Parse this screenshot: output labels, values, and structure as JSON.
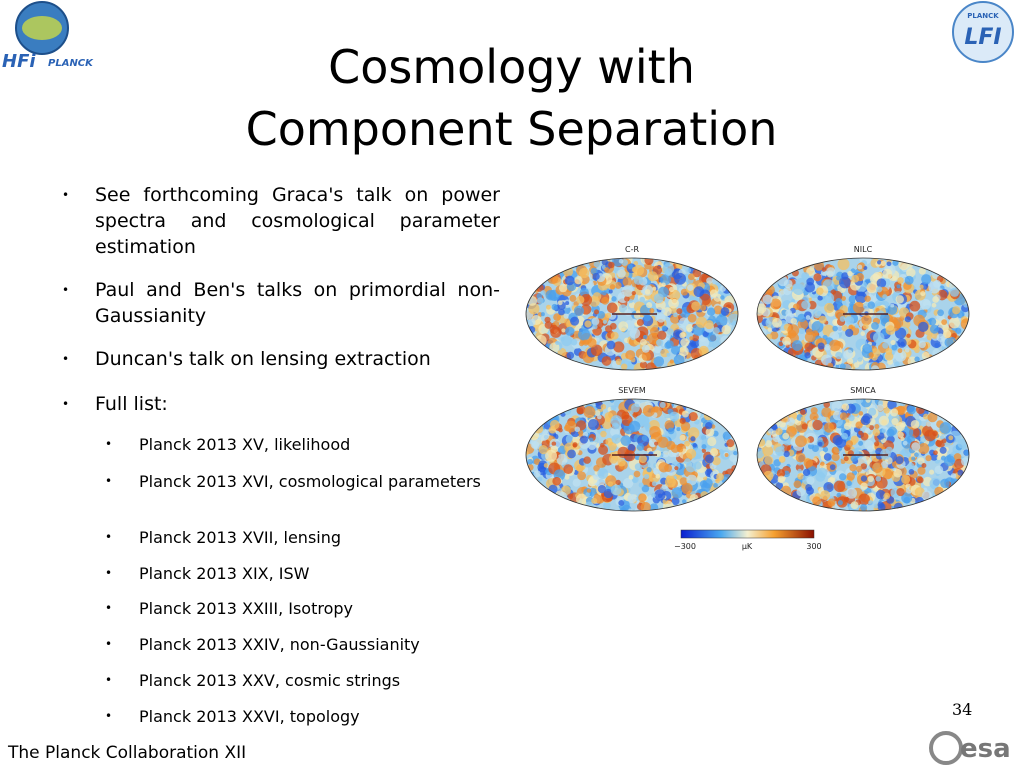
{
  "logos": {
    "hfi": "HFi",
    "hfi_planck": "PLANCK",
    "lfi_planck": "PLANCK",
    "lfi": "LFI",
    "esa": "esa"
  },
  "title": {
    "line1": "Cosmology with",
    "line2": "Component Separation"
  },
  "bullets": [
    "See forthcoming Graca's talk on power spectra and cosmological parameter estimation",
    "Paul and Ben's talks on primordial non-Gaussianity",
    "Duncan's talk on lensing extraction",
    "Full list:"
  ],
  "sub_bullets": [
    "Planck 2013 XV, likelihood",
    "Planck 2013 XVI, cosmological parameters",
    "Planck 2013 XVII, lensing",
    "Planck 2013 XIX, ISW",
    "Planck 2013 XXIII, Isotropy",
    "Planck 2013 XXIV, non-Gaussianity",
    "Planck 2013 XXV, cosmic strings",
    "Planck 2013 XXVI, topology"
  ],
  "maps": [
    "C-R",
    "NILC",
    "SEVEM",
    "SMICA"
  ],
  "colorbar": {
    "min": "−300",
    "unit": "μK",
    "max": "300"
  },
  "page_number": "34",
  "footer": "The Planck Collaboration XII"
}
